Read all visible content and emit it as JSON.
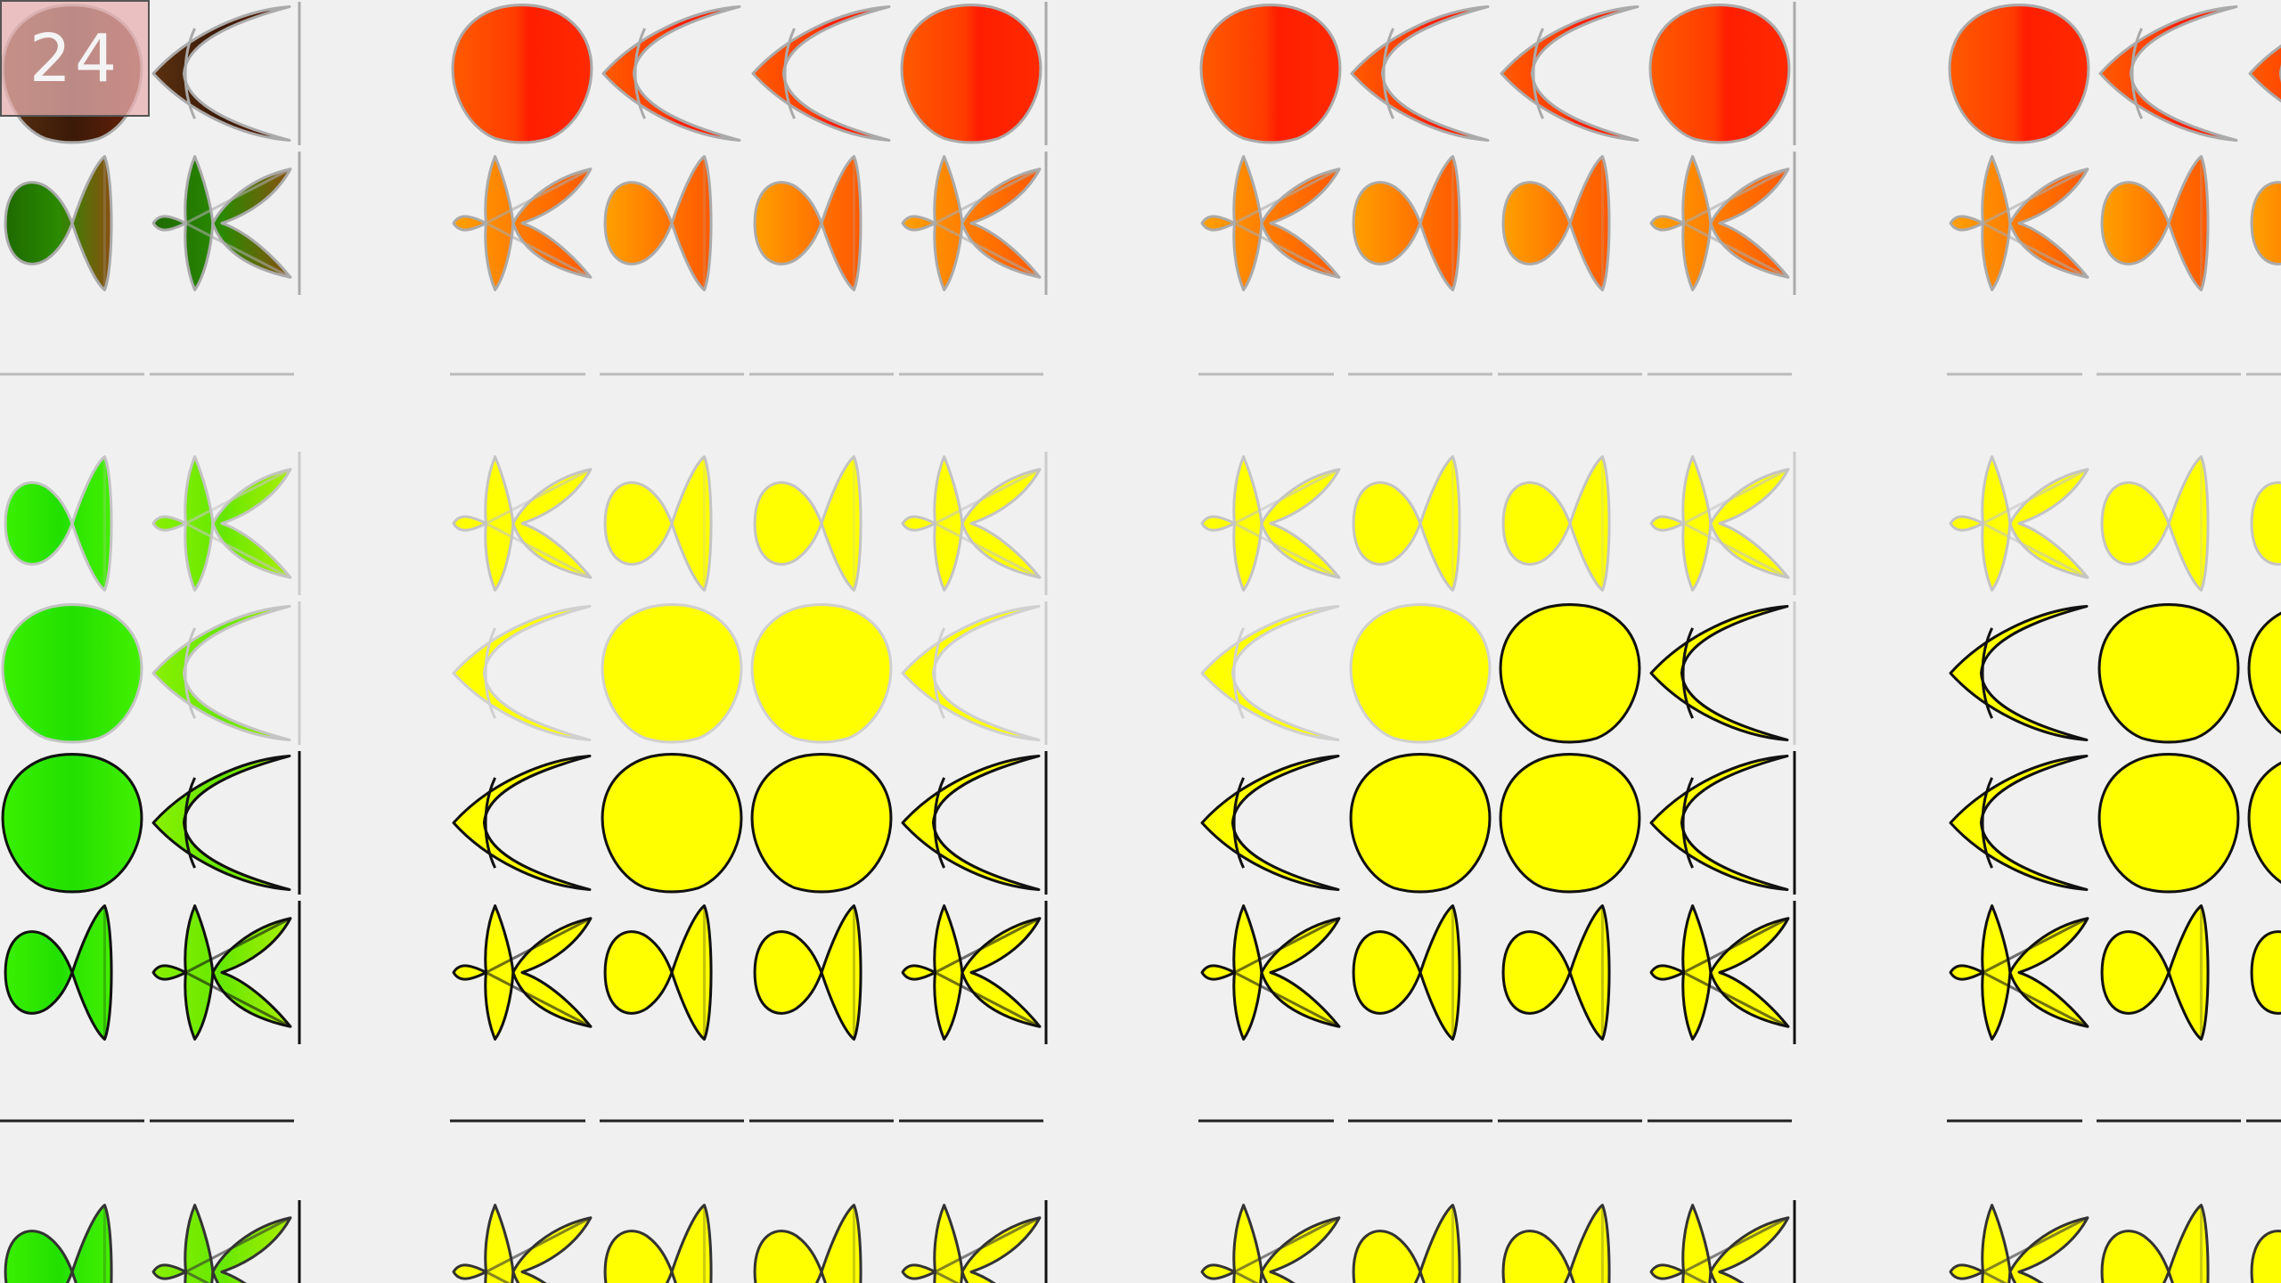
{
  "badge": {
    "label": "24",
    "background": "#e8b0b0",
    "border": "#555555",
    "text_color": "#f4f4f4"
  },
  "background_color": "#f0f0f0",
  "tile_shapes": {
    "description_free_keys": [
      "pentagon",
      "parabola",
      "bowtie",
      "star"
    ]
  },
  "rows": [
    {
      "name": "row-top",
      "shapes": [
        "parabola",
        "star"
      ],
      "left_block_fill": "#8b3a10",
      "fill": "#ff3c00",
      "fill_light": "#ff7a1e",
      "stroke": "#a8a8a8"
    },
    {
      "name": "row-mid",
      "shapes": [
        "star",
        "parabola",
        "parabola",
        "star"
      ],
      "left_block_fill": "#33ee11",
      "fill": "#ffff00",
      "stroke_upper": "#c0c0c0",
      "stroke_lower": "#111111"
    },
    {
      "name": "row-bottom",
      "shapes": [
        "star"
      ],
      "left_block_fill": "#33ee11",
      "fill": "#ffff00",
      "stroke": "#333333"
    }
  ],
  "palette": {
    "red": "#ff2a00",
    "orange": "#ff8800",
    "yellow": "#ffff00",
    "green": "#22ee00",
    "dark_green": "#1a7a00",
    "olive": "#7a5a10",
    "gray_stroke": "#aaaaaa",
    "black_stroke": "#111111"
  }
}
